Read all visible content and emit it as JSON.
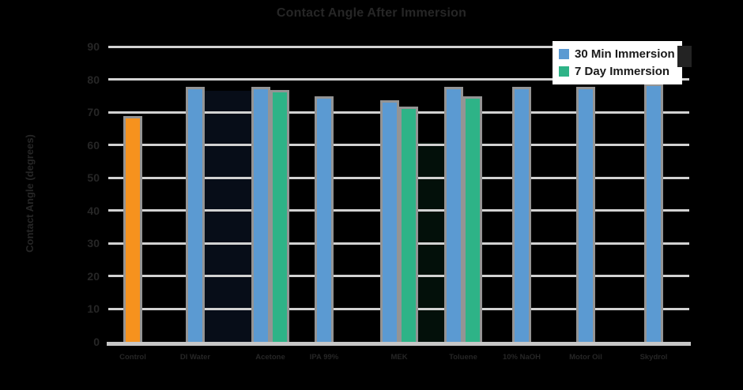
{
  "chart_data": {
    "type": "bar",
    "title": "Contact Angle After Immersion",
    "ylabel": "Contact Angle (degrees)",
    "xlabel": "",
    "ylim": [
      0,
      90
    ],
    "yticks": [
      0,
      10,
      20,
      30,
      40,
      50,
      60,
      70,
      80,
      90
    ],
    "grid": "horizontal",
    "legend_position": "top-right",
    "categories": [
      "Control",
      "DI Water",
      "Acetone",
      "IPA 99%",
      "MEK",
      "Toluene",
      "10% NaOH",
      "Motor Oil",
      "Skydrol"
    ],
    "series": [
      {
        "name": "Control",
        "color": "#f6921e",
        "values": [
          68,
          null,
          null,
          null,
          null,
          null,
          null,
          null,
          null
        ]
      },
      {
        "name": "30 Min Immersion",
        "color": "#5b9ad2",
        "values": [
          null,
          77,
          77,
          74,
          73,
          77,
          77,
          77,
          78
        ]
      },
      {
        "name": "7 Day Immersion",
        "color": "#2eb387",
        "values": [
          null,
          null,
          76,
          null,
          71,
          74,
          null,
          null,
          null
        ]
      }
    ],
    "bar_border_color": "#949494",
    "gridline_color": "#d2d2d2",
    "text_color": "#262626"
  },
  "legend": {
    "items": [
      {
        "label": "30 Min Immersion",
        "color": "#5b9ad2"
      },
      {
        "label": "7 Day Immersion",
        "color": "#2eb387"
      }
    ]
  }
}
